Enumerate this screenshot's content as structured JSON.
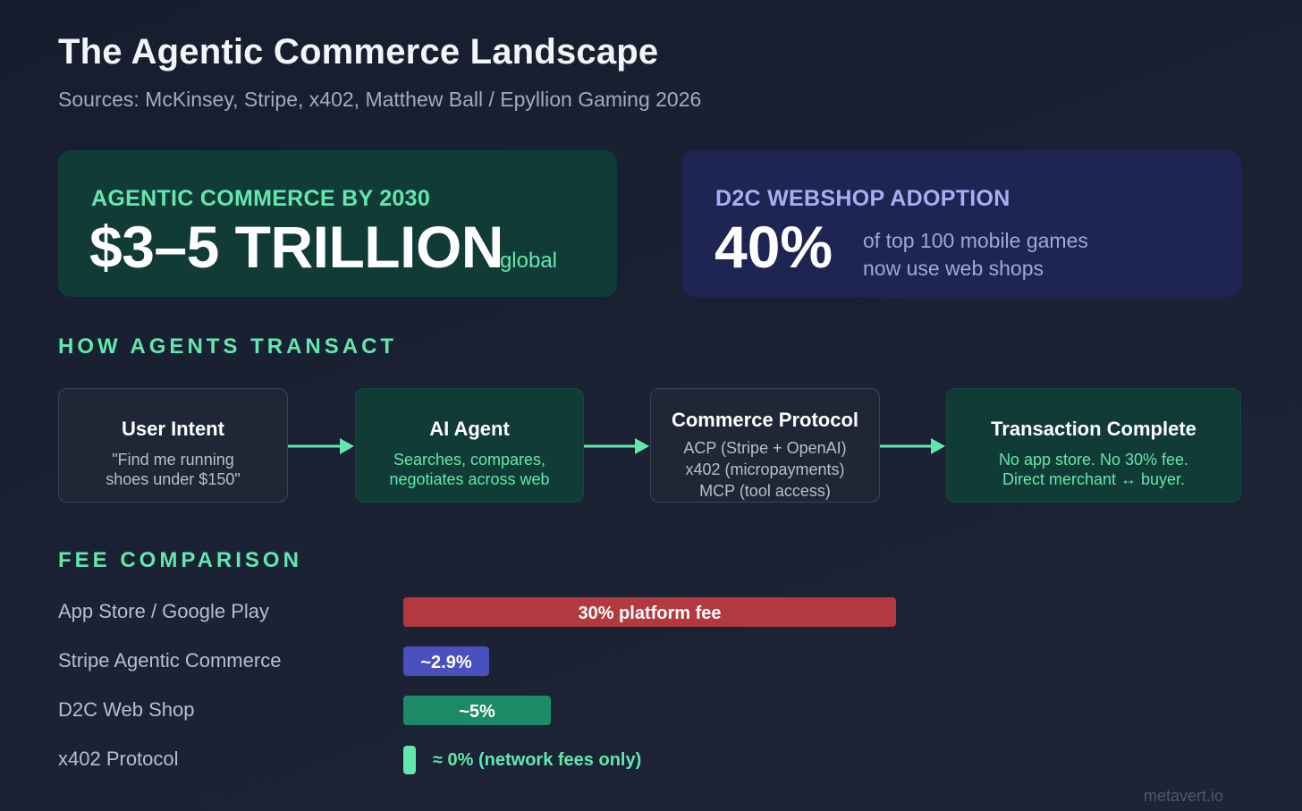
{
  "header": {
    "title": "The Agentic Commerce Landscape",
    "subtitle": "Sources: McKinsey, Stripe, x402, Matthew Ball / Epyllion Gaming 2026"
  },
  "stats": {
    "commerce": {
      "label": "AGENTIC COMMERCE BY 2030",
      "value": "$3–5 TRILLION",
      "suffix": "global"
    },
    "webshop": {
      "label": "D2C WEBSHOP ADOPTION",
      "value": "40%",
      "desc_line1": "of top 100 mobile games",
      "desc_line2": "now use web shops"
    }
  },
  "flow": {
    "heading": "HOW AGENTS TRANSACT",
    "steps": [
      {
        "title": "User Intent",
        "lines": [
          "\"Find me running",
          "shoes under $150\""
        ]
      },
      {
        "title": "AI Agent",
        "lines": [
          "Searches, compares,",
          "negotiates across web"
        ]
      },
      {
        "title": "Commerce Protocol",
        "lines": [
          "ACP (Stripe + OpenAI)",
          "x402 (micropayments)",
          "MCP (tool access)"
        ]
      },
      {
        "title": "Transaction Complete",
        "lines": [
          "No app store. No 30% fee.",
          "Direct merchant ↔ buyer."
        ]
      }
    ]
  },
  "fees": {
    "heading": "FEE COMPARISON",
    "rows": [
      {
        "label": "App Store / Google Play",
        "bar_text": "30% platform fee",
        "percent": 30,
        "color": "#b2393f"
      },
      {
        "label": "Stripe Agentic Commerce",
        "bar_text": "~2.9%",
        "percent": 2.9,
        "color": "#4b50bf"
      },
      {
        "label": "D2C Web Shop",
        "bar_text": "~5%",
        "percent": 5,
        "color": "#1c8a66"
      },
      {
        "label": "x402 Protocol",
        "bar_text": "≈ 0% (network fees only)",
        "percent": 0,
        "color": "#62e8ad"
      }
    ]
  },
  "footer": {
    "source": "metavert.io"
  },
  "colors": {
    "accent": "#62e8ad",
    "purple_accent": "#a9adf6"
  }
}
